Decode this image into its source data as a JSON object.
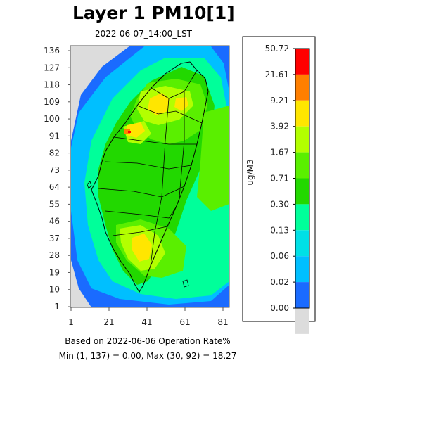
{
  "title": "Layer 1 PM10[1]",
  "subtitle": "2022-06-07_14:00_LST",
  "footer": {
    "line1": "Based on 2022-06-06 Operation Rate%",
    "line2": "Min (1, 137) = 0.00, Max (30, 92) = 18.27"
  },
  "axes": {
    "x_ticks": [
      "1",
      "21",
      "41",
      "61",
      "81"
    ],
    "y_ticks": [
      "136",
      "127",
      "118",
      "109",
      "100",
      "91",
      "82",
      "73",
      "64",
      "55",
      "46",
      "37",
      "28",
      "19",
      "10",
      "1"
    ]
  },
  "legend": {
    "unit": "ug/M3",
    "breaks": [
      "50.72",
      "21.61",
      "9.21",
      "3.92",
      "1.67",
      "0.71",
      "0.30",
      "0.13",
      "0.06",
      "0.02",
      "0.00"
    ],
    "colors": [
      "#ff0000",
      "#ff7f00",
      "#ffe600",
      "#b3ff00",
      "#5aef00",
      "#22d800",
      "#00ff9a",
      "#00e0e6",
      "#00bfff",
      "#1a6bff",
      "#dcdcdc"
    ]
  },
  "colors": {
    "no_data": "#dcdcdc",
    "far_sea": "#1a6bff",
    "near_sea": "#00bfff",
    "coast": "#00ff9a",
    "low_land": "#22d800",
    "mid_land": "#5aef00",
    "high_land": "#b3ff00",
    "hot": "#ffe600",
    "very_hot": "#ff7f00",
    "peak": "#ff0000",
    "outline": "#000000"
  }
}
